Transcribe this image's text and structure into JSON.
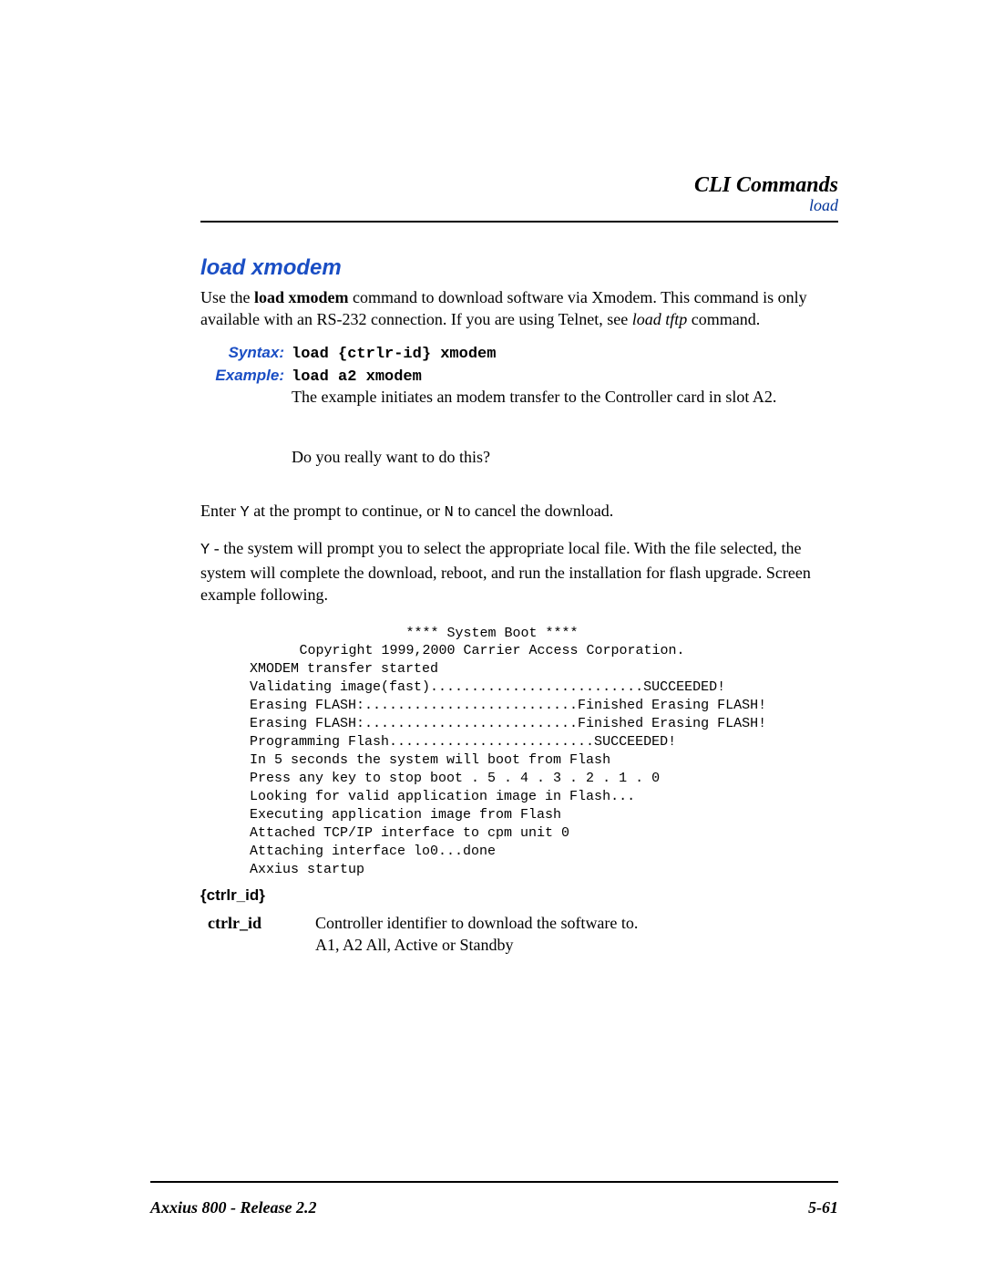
{
  "header": {
    "title": "CLI Commands",
    "subtitle": "load"
  },
  "section": {
    "title": "load xmodem",
    "intro_parts": {
      "pre": "Use the ",
      "bold": "load xmodem",
      "mid": " command to download software via Xmodem. This command is only available with an RS-232 connection. If you are using Telnet, see ",
      "italic": "load tftp",
      "post": " command."
    },
    "syntax": {
      "label": "Syntax:",
      "value": "load {ctrlr-id} xmodem"
    },
    "example": {
      "label": "Example:",
      "value": "load a2 xmodem",
      "desc": "The example initiates an modem transfer to the Controller card in slot A2."
    },
    "prompt": "Do you really want to do this?",
    "enter_parts": {
      "pre": "Enter ",
      "y": "Y",
      "mid": " at the prompt to continue, or ",
      "n": "N",
      "post": " to cancel the download."
    },
    "y_desc_parts": {
      "y": " Y",
      "rest": " - the system will prompt you to select the appropriate local file. With the file selected, the system will complete the download, reboot, and run the installation for flash upgrade. Screen example following."
    },
    "code": {
      "l1": "**** System Boot ****",
      "l2": "Copyright 1999,2000 Carrier Access Corporation.",
      "l3": "XMODEM transfer started",
      "l4": "Validating image(fast)..........................SUCCEEDED!",
      "l5": "Erasing FLASH:..........................Finished Erasing FLASH!",
      "l6": "Erasing FLASH:..........................Finished Erasing FLASH!",
      "l7": "Programming Flash.........................SUCCEEDED!",
      "l8": "In 5 seconds the system will boot from Flash",
      "l9": "Press any key to stop boot . 5 . 4 . 3 . 2 . 1 . 0",
      "l10": "Looking for valid application image in Flash...",
      "l11": "Executing application image from Flash",
      "l12": "Attached TCP/IP interface to cpm unit 0",
      "l13": "Attaching interface lo0...done",
      "l14": "Axxius startup"
    },
    "param": {
      "heading": "{ctrlr_id}",
      "name": "ctrlr_id",
      "desc1": "Controller identifier to download the software to.",
      "desc2": " A1, A2 All, Active or Standby"
    }
  },
  "footer": {
    "left": "Axxius 800 - Release 2.2",
    "right": "5-61"
  },
  "colors": {
    "accent": "#1a4ec4",
    "subheader": "#003399",
    "text": "#000000",
    "background": "#ffffff"
  }
}
